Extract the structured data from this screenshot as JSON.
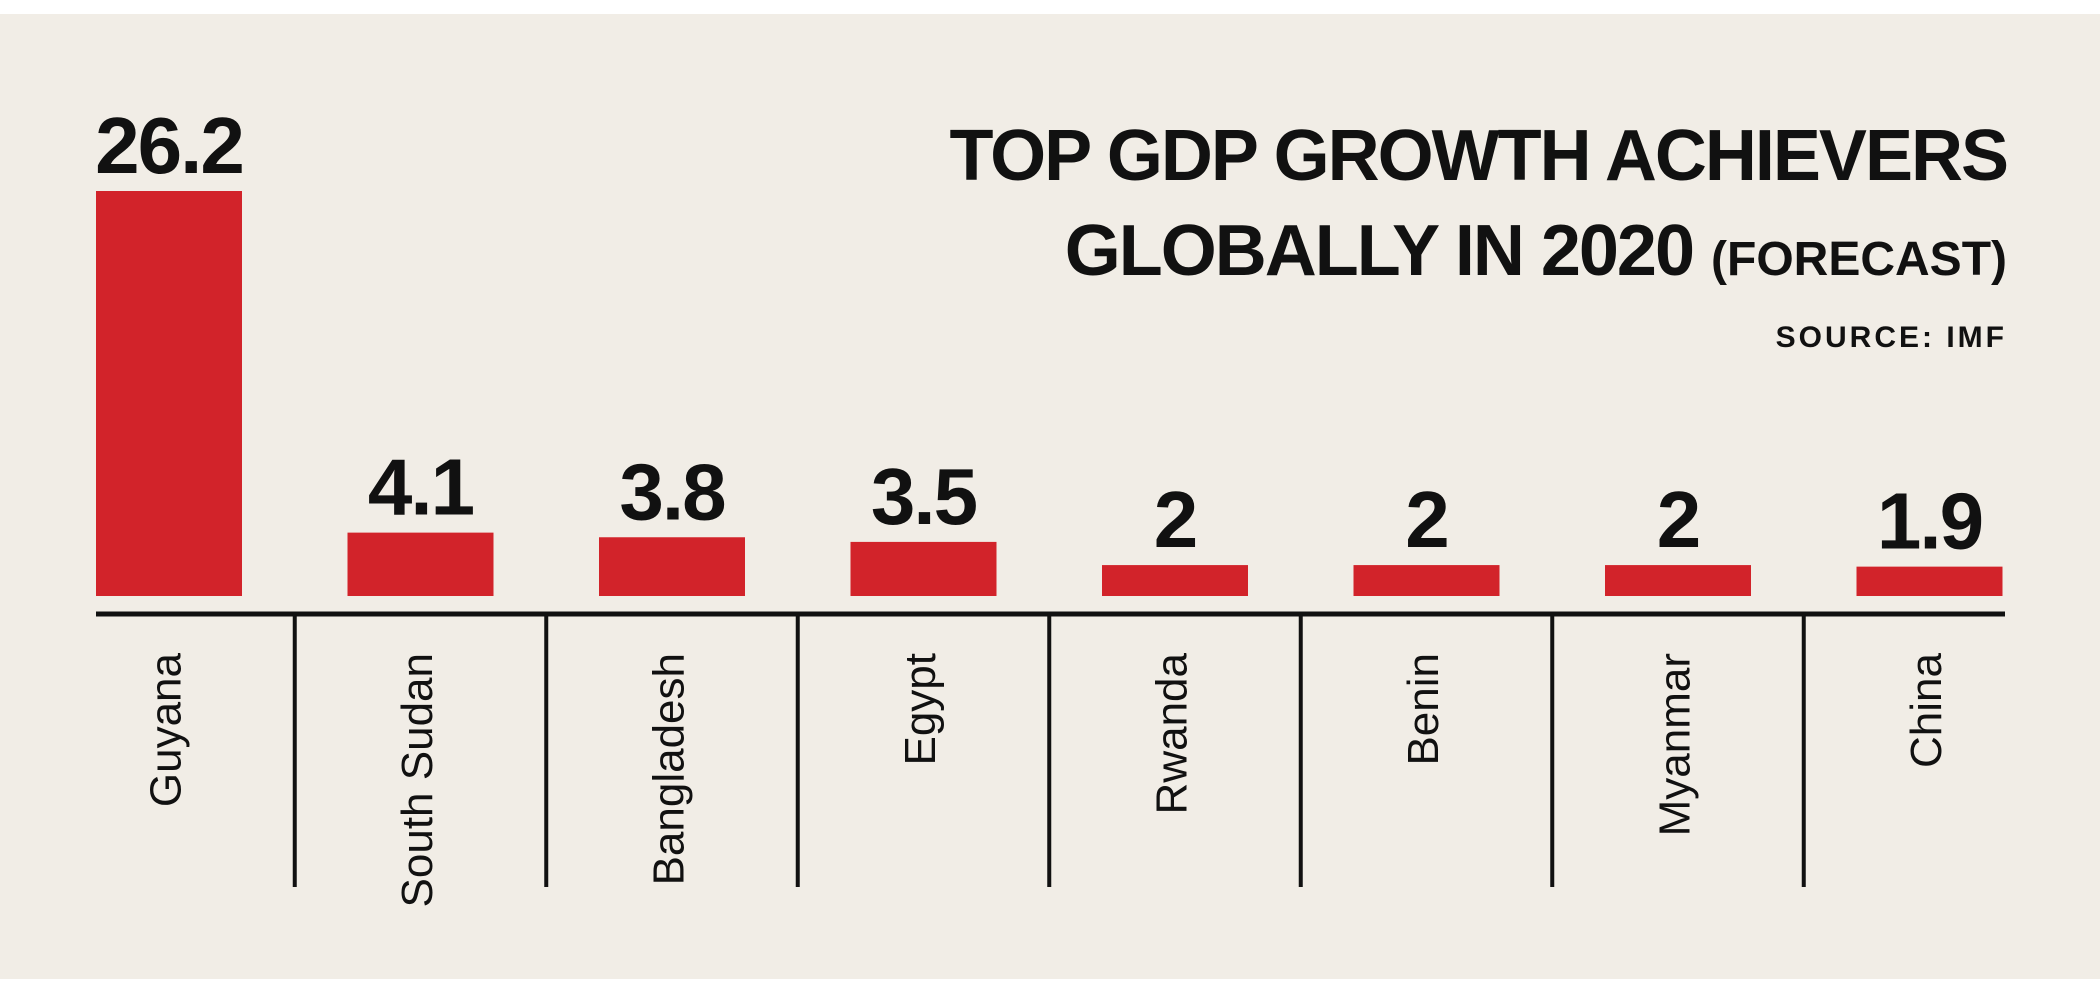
{
  "chart_data": {
    "type": "bar",
    "title_line1": "TOP GDP GROWTH ACHIEVERS",
    "title_line2": "GLOBALLY IN 2020",
    "title_qualifier": "(FORECAST)",
    "source": "SOURCE: IMF",
    "categories": [
      "Guyana",
      "South Sudan",
      "Bangladesh",
      "Egypt",
      "Rwanda",
      "Benin",
      "Myanmar",
      "China"
    ],
    "value_labels": [
      "26.2",
      "4.1",
      "3.8",
      "3.5",
      "2",
      "2",
      "2",
      "1.9"
    ],
    "values": [
      26.2,
      4.1,
      3.8,
      3.5,
      2,
      2,
      2,
      1.9
    ],
    "ylim": [
      0,
      26.2
    ],
    "xlabel": "",
    "ylabel": "",
    "grid": false,
    "bar_color": "#d2232a"
  }
}
